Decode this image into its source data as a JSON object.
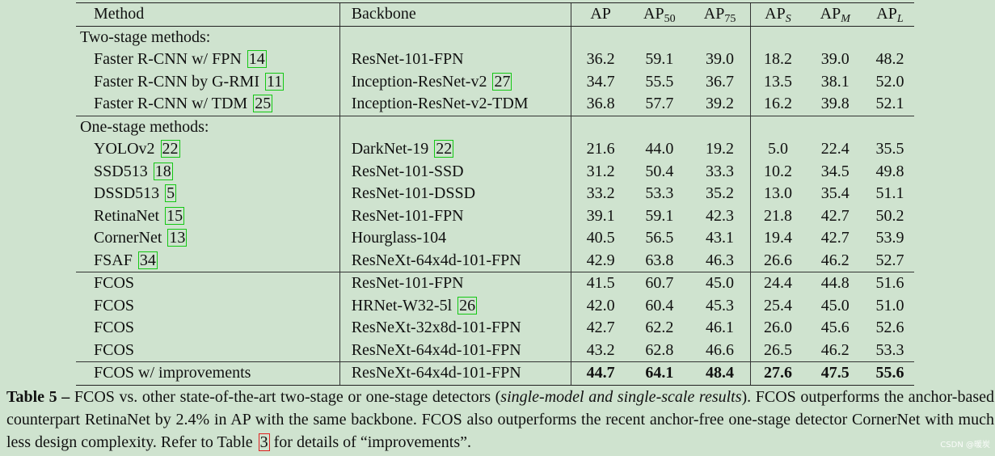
{
  "headers": {
    "method": "Method",
    "backbone": "Backbone",
    "ap": "AP",
    "ap50_base": "AP",
    "ap50_sub": "50",
    "ap75_base": "AP",
    "ap75_sub": "75",
    "aps_base": "AP",
    "aps_sub": "S",
    "apm_base": "AP",
    "apm_sub": "M",
    "apl_base": "AP",
    "apl_sub": "L"
  },
  "sections": {
    "two_stage": "Two-stage methods:",
    "one_stage": "One-stage methods:"
  },
  "rows": [
    {
      "method": "Faster R-CNN w/ FPN",
      "method_cite": "14",
      "backbone": "ResNet-101-FPN",
      "backbone_cite": "",
      "ap": "36.2",
      "ap50": "59.1",
      "ap75": "39.0",
      "aps": "18.2",
      "apm": "39.0",
      "apl": "48.2"
    },
    {
      "method": "Faster R-CNN by G-RMI",
      "method_cite": "11",
      "backbone": "Inception-ResNet-v2",
      "backbone_cite": "27",
      "ap": "34.7",
      "ap50": "55.5",
      "ap75": "36.7",
      "aps": "13.5",
      "apm": "38.1",
      "apl": "52.0"
    },
    {
      "method": "Faster R-CNN w/ TDM",
      "method_cite": "25",
      "backbone": "Inception-ResNet-v2-TDM",
      "backbone_cite": "",
      "ap": "36.8",
      "ap50": "57.7",
      "ap75": "39.2",
      "aps": "16.2",
      "apm": "39.8",
      "apl": "52.1"
    },
    {
      "method": "YOLOv2",
      "method_cite": "22",
      "backbone": "DarkNet-19",
      "backbone_cite": "22",
      "ap": "21.6",
      "ap50": "44.0",
      "ap75": "19.2",
      "aps": "5.0",
      "apm": "22.4",
      "apl": "35.5"
    },
    {
      "method": "SSD513",
      "method_cite": "18",
      "backbone": "ResNet-101-SSD",
      "backbone_cite": "",
      "ap": "31.2",
      "ap50": "50.4",
      "ap75": "33.3",
      "aps": "10.2",
      "apm": "34.5",
      "apl": "49.8"
    },
    {
      "method": "DSSD513",
      "method_cite": "5",
      "backbone": "ResNet-101-DSSD",
      "backbone_cite": "",
      "ap": "33.2",
      "ap50": "53.3",
      "ap75": "35.2",
      "aps": "13.0",
      "apm": "35.4",
      "apl": "51.1"
    },
    {
      "method": "RetinaNet",
      "method_cite": "15",
      "backbone": "ResNet-101-FPN",
      "backbone_cite": "",
      "ap": "39.1",
      "ap50": "59.1",
      "ap75": "42.3",
      "aps": "21.8",
      "apm": "42.7",
      "apl": "50.2"
    },
    {
      "method": "CornerNet",
      "method_cite": "13",
      "backbone": "Hourglass-104",
      "backbone_cite": "",
      "ap": "40.5",
      "ap50": "56.5",
      "ap75": "43.1",
      "aps": "19.4",
      "apm": "42.7",
      "apl": "53.9"
    },
    {
      "method": "FSAF",
      "method_cite": "34",
      "backbone": "ResNeXt-64x4d-101-FPN",
      "backbone_cite": "",
      "ap": "42.9",
      "ap50": "63.8",
      "ap75": "46.3",
      "aps": "26.6",
      "apm": "46.2",
      "apl": "52.7"
    },
    {
      "method": "FCOS",
      "method_cite": "",
      "backbone": "ResNet-101-FPN",
      "backbone_cite": "",
      "ap": "41.5",
      "ap50": "60.7",
      "ap75": "45.0",
      "aps": "24.4",
      "apm": "44.8",
      "apl": "51.6"
    },
    {
      "method": "FCOS",
      "method_cite": "",
      "backbone": "HRNet-W32-5l",
      "backbone_cite": "26",
      "ap": "42.0",
      "ap50": "60.4",
      "ap75": "45.3",
      "aps": "25.4",
      "apm": "45.0",
      "apl": "51.0"
    },
    {
      "method": "FCOS",
      "method_cite": "",
      "backbone": "ResNeXt-32x8d-101-FPN",
      "backbone_cite": "",
      "ap": "42.7",
      "ap50": "62.2",
      "ap75": "46.1",
      "aps": "26.0",
      "apm": "45.6",
      "apl": "52.6"
    },
    {
      "method": "FCOS",
      "method_cite": "",
      "backbone": "ResNeXt-64x4d-101-FPN",
      "backbone_cite": "",
      "ap": "43.2",
      "ap50": "62.8",
      "ap75": "46.6",
      "aps": "26.5",
      "apm": "46.2",
      "apl": "53.3"
    },
    {
      "method": "FCOS w/ improvements",
      "method_cite": "",
      "backbone": "ResNeXt-64x4d-101-FPN",
      "backbone_cite": "",
      "ap": "44.7",
      "ap50": "64.1",
      "ap75": "48.4",
      "aps": "27.6",
      "apm": "47.5",
      "apl": "55.6"
    }
  ],
  "caption": {
    "label": "Table 5 –",
    "text1": " FCOS vs. other state-of-the-art two-stage or one-stage detectors (",
    "italic": "single-model and single-scale results",
    "text2": "). FCOS outperforms the anchor-based counterpart RetinaNet by 2.4% in AP with the same backbone. FCOS also outperforms the recent anchor-free one-stage detector CornerNet with much less design complexity. Refer to Table ",
    "ref": "3",
    "text3": " for details of “improvements”."
  },
  "watermark": "CSDN @暖炭"
}
